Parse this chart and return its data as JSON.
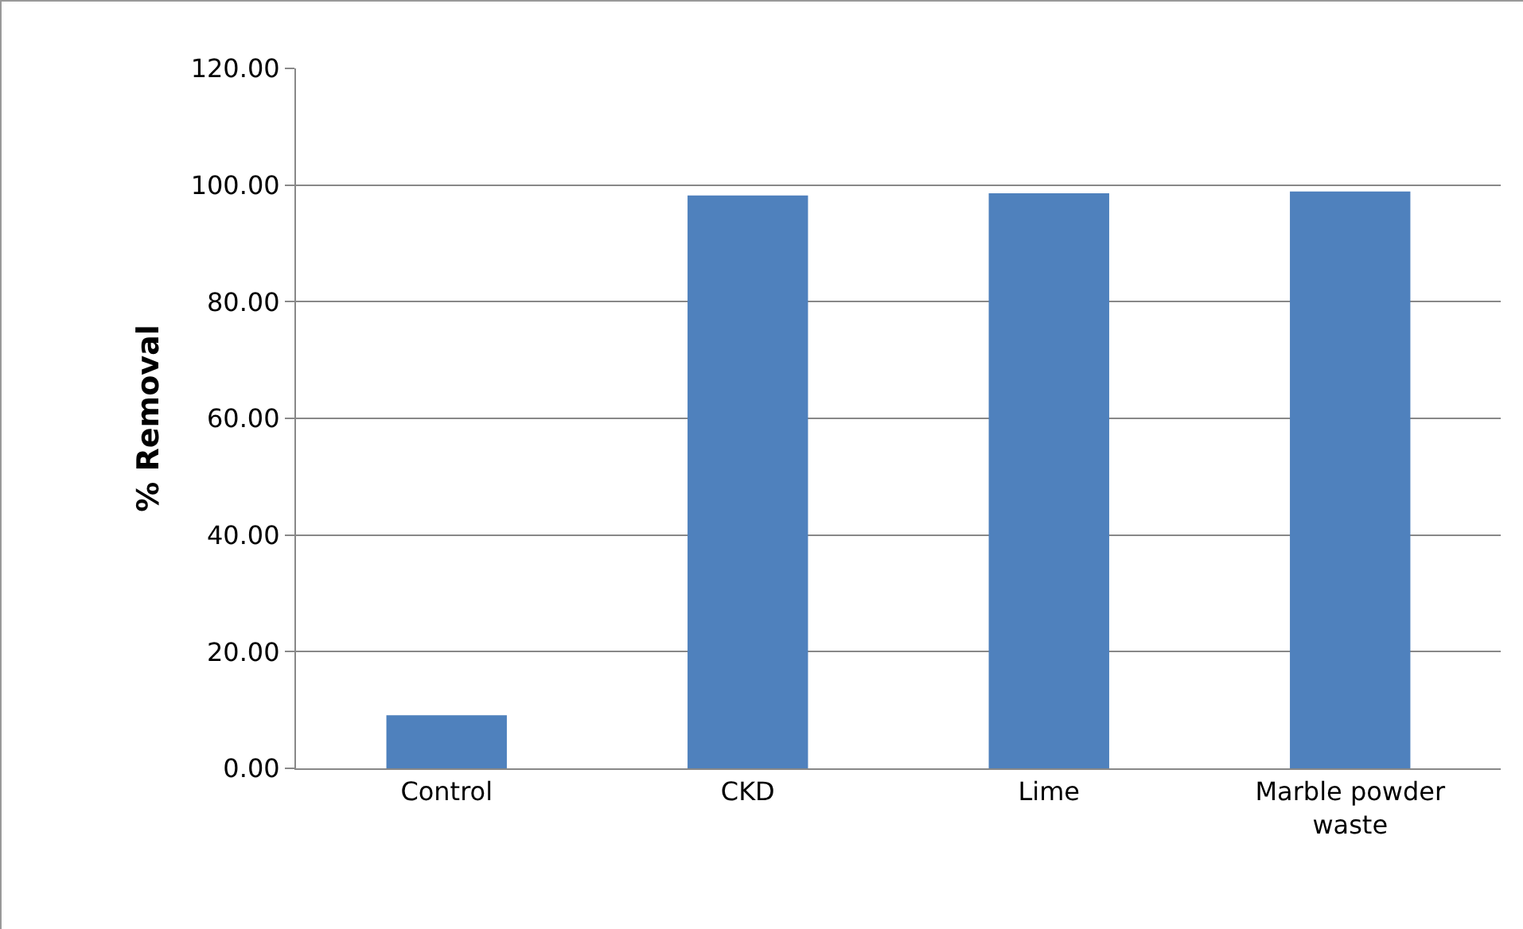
{
  "chart_data": {
    "type": "bar",
    "ylabel": "% Removal",
    "categories": [
      "Control",
      "CKD",
      "Lime",
      "Marble powder waste"
    ],
    "values": [
      9.1,
      98.2,
      98.6,
      98.9
    ],
    "color": "#4f81bd",
    "ylim": [
      0,
      120
    ],
    "yticks": [
      {
        "value": 0,
        "label": "0.00"
      },
      {
        "value": 20,
        "label": "20.00"
      },
      {
        "value": 40,
        "label": "40.00"
      },
      {
        "value": 60,
        "label": "60.00"
      },
      {
        "value": 80,
        "label": "80.00"
      },
      {
        "value": 100,
        "label": "100.00"
      },
      {
        "value": 120,
        "label": "120.00"
      }
    ],
    "grid": "y"
  }
}
